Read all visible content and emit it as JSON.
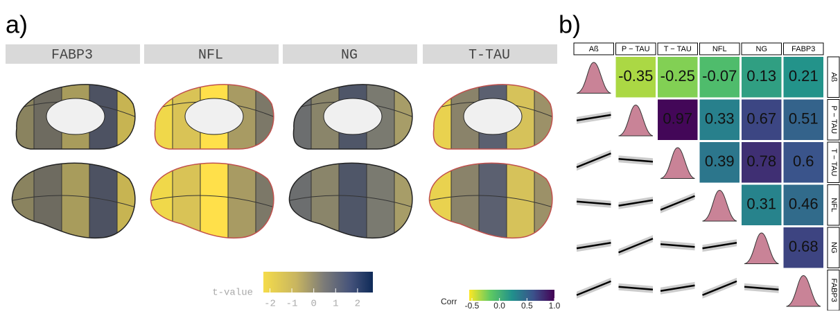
{
  "panel_a": {
    "label": "a)",
    "facets": [
      "FABP3",
      "NFL",
      "NG",
      "T-TAU"
    ],
    "colorbar": {
      "title": "t-value",
      "lim": [
        -2.3,
        2.7
      ],
      "ticks": [
        -2,
        -1,
        0,
        1,
        2
      ]
    }
  },
  "panel_b": {
    "label": "b)",
    "variables": [
      "Aß",
      "P − TAU",
      "T − TAU",
      "NFL",
      "NG",
      "FABP3"
    ],
    "correlations": [
      [
        -0.35,
        -0.25,
        -0.07,
        0.13,
        0.21
      ],
      [
        0.97,
        0.33,
        0.67,
        0.51
      ],
      [
        0.39,
        0.78,
        0.6
      ],
      [
        0.31,
        0.46
      ],
      [
        0.68
      ]
    ],
    "colorbar": {
      "title": "Corr",
      "lim": [
        -0.55,
        1.0
      ],
      "ticks": [
        {
          "value": -0.5,
          "label": "-0.5"
        },
        {
          "value": 0,
          "label": "0.0"
        },
        {
          "value": 0.5,
          "label": "0.5"
        },
        {
          "value": 1,
          "label": "1.0"
        }
      ]
    }
  }
}
